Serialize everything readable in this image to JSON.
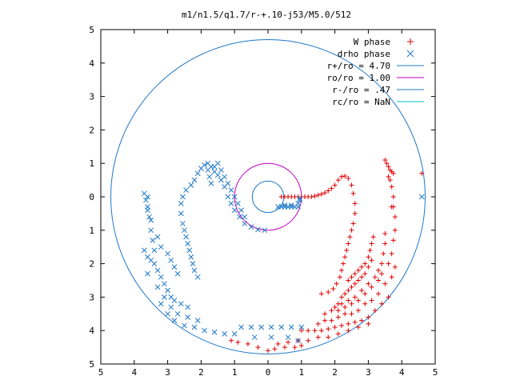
{
  "chart_data": {
    "type": "scatter",
    "title": "m1/n1.5/q1.7/r-+.10-j53/M5.0/512",
    "xlabel": "",
    "ylabel": "",
    "xlim": [
      -5,
      5
    ],
    "ylim": [
      -5,
      5
    ],
    "x_ticks": [
      -5,
      -4,
      -3,
      -2,
      -1,
      0,
      1,
      2,
      3,
      4,
      5
    ],
    "y_ticks": [
      -5,
      -4,
      -3,
      -2,
      -1,
      0,
      1,
      2,
      3,
      4,
      5
    ],
    "x_tick_labels": [
      "5",
      "4",
      "3",
      "2",
      "1",
      "0",
      "1",
      "2",
      "3",
      "4",
      "5"
    ],
    "y_tick_labels": [
      "5",
      "4",
      "3",
      "2",
      "1",
      "0",
      "1",
      "2",
      "3",
      "4",
      "5"
    ],
    "grid": false,
    "legend_position": "top-right",
    "series": [
      {
        "name": "W phase",
        "marker": "plus",
        "color": "#e00000",
        "points": [
          [
            0.4,
            0.0
          ],
          [
            0.5,
            0.0
          ],
          [
            0.6,
            0.0
          ],
          [
            0.7,
            0.0
          ],
          [
            0.8,
            0.0
          ],
          [
            0.9,
            0.0
          ],
          [
            1.0,
            0.0
          ],
          [
            1.1,
            0.0
          ],
          [
            1.2,
            0.0
          ],
          [
            1.3,
            0.0
          ],
          [
            1.4,
            0.02
          ],
          [
            1.5,
            0.05
          ],
          [
            1.6,
            0.08
          ],
          [
            1.7,
            0.12
          ],
          [
            1.8,
            0.18
          ],
          [
            1.9,
            0.25
          ],
          [
            2.0,
            0.35
          ],
          [
            2.1,
            0.5
          ],
          [
            2.2,
            0.6
          ],
          [
            2.3,
            0.62
          ],
          [
            2.4,
            0.55
          ],
          [
            2.5,
            0.35
          ],
          [
            2.55,
            0.1
          ],
          [
            2.6,
            -0.2
          ],
          [
            2.6,
            -0.5
          ],
          [
            2.55,
            -0.8
          ],
          [
            2.5,
            -1.0
          ],
          [
            2.45,
            -1.2
          ],
          [
            2.4,
            -1.4
          ],
          [
            2.35,
            -1.6
          ],
          [
            2.3,
            -1.8
          ],
          [
            2.25,
            -2.0
          ],
          [
            2.2,
            -2.2
          ],
          [
            2.15,
            -2.4
          ],
          [
            2.05,
            -2.6
          ],
          [
            1.95,
            -2.75
          ],
          [
            1.8,
            -2.85
          ],
          [
            1.6,
            -2.9
          ],
          [
            2.4,
            -2.5
          ],
          [
            2.5,
            -2.4
          ],
          [
            2.6,
            -2.3
          ],
          [
            2.7,
            -2.2
          ],
          [
            2.8,
            -2.1
          ],
          [
            2.9,
            -2.0
          ],
          [
            3.0,
            -1.8
          ],
          [
            3.05,
            -1.6
          ],
          [
            3.1,
            -1.4
          ],
          [
            3.15,
            -1.2
          ],
          [
            2.2,
            -3.0
          ],
          [
            2.3,
            -2.9
          ],
          [
            2.4,
            -2.8
          ],
          [
            2.5,
            -2.7
          ],
          [
            2.6,
            -2.6
          ],
          [
            2.7,
            -2.5
          ],
          [
            2.8,
            -2.4
          ],
          [
            2.9,
            -2.3
          ],
          [
            3.0,
            -2.1
          ],
          [
            3.1,
            -1.9
          ],
          [
            2.0,
            -3.3
          ],
          [
            2.1,
            -3.2
          ],
          [
            2.2,
            -3.2
          ],
          [
            2.4,
            -3.1
          ],
          [
            2.6,
            -3.0
          ],
          [
            2.8,
            -2.8
          ],
          [
            3.0,
            -2.6
          ],
          [
            3.2,
            -2.4
          ],
          [
            3.3,
            -2.2
          ],
          [
            3.4,
            -2.0
          ],
          [
            3.45,
            -1.7
          ],
          [
            3.5,
            -1.4
          ],
          [
            3.5,
            -1.1
          ],
          [
            1.7,
            -3.5
          ],
          [
            1.9,
            -3.4
          ],
          [
            2.1,
            -3.4
          ],
          [
            2.3,
            -3.3
          ],
          [
            2.5,
            -3.2
          ],
          [
            2.7,
            -3.1
          ],
          [
            2.9,
            -2.9
          ],
          [
            3.1,
            -2.7
          ],
          [
            3.3,
            -2.5
          ],
          [
            3.4,
            -2.3
          ],
          [
            3.6,
            -2.0
          ],
          [
            3.7,
            -1.7
          ],
          [
            3.75,
            -1.3
          ],
          [
            3.8,
            -1.0
          ],
          [
            3.8,
            -0.6
          ],
          [
            3.75,
            -0.3
          ],
          [
            1.5,
            -3.8
          ],
          [
            1.7,
            -3.7
          ],
          [
            1.9,
            -3.7
          ],
          [
            2.1,
            -3.6
          ],
          [
            2.3,
            -3.5
          ],
          [
            2.5,
            -3.5
          ],
          [
            2.7,
            -3.4
          ],
          [
            2.9,
            -3.2
          ],
          [
            3.1,
            -3.1
          ],
          [
            3.3,
            -2.9
          ],
          [
            3.5,
            -2.6
          ],
          [
            3.7,
            -2.4
          ],
          [
            3.8,
            -2.1
          ],
          [
            1.0,
            -4.0
          ],
          [
            1.2,
            -4.0
          ],
          [
            1.4,
            -4.0
          ],
          [
            1.6,
            -4.0
          ],
          [
            1.8,
            -3.95
          ],
          [
            2.0,
            -3.9
          ],
          [
            2.2,
            -3.85
          ],
          [
            2.4,
            -3.8
          ],
          [
            2.6,
            -3.75
          ],
          [
            2.8,
            -3.7
          ],
          [
            3.0,
            -3.6
          ],
          [
            3.2,
            -3.4
          ],
          [
            3.4,
            -3.2
          ],
          [
            3.6,
            -3.0
          ],
          [
            0.3,
            -4.4
          ],
          [
            0.6,
            -4.35
          ],
          [
            0.9,
            -4.3
          ],
          [
            1.2,
            -4.3
          ],
          [
            1.5,
            -4.2
          ],
          [
            1.8,
            -4.2
          ],
          [
            2.1,
            -4.1
          ],
          [
            2.4,
            -4.0
          ],
          [
            2.7,
            -3.9
          ],
          [
            3.0,
            -3.8
          ],
          [
            -1.1,
            -4.3
          ],
          [
            -0.9,
            -4.35
          ],
          [
            -0.6,
            -4.4
          ],
          [
            -0.3,
            -4.5
          ],
          [
            0.0,
            -4.6
          ],
          [
            0.2,
            -4.55
          ],
          [
            0.5,
            -4.5
          ],
          [
            0.8,
            -4.5
          ],
          [
            1.0,
            -4.45
          ],
          [
            3.5,
            1.1
          ],
          [
            3.55,
            1.0
          ],
          [
            3.6,
            0.9
          ],
          [
            3.65,
            0.8
          ],
          [
            3.7,
            0.75
          ],
          [
            3.75,
            0.7
          ],
          [
            3.6,
            0.6
          ],
          [
            3.65,
            0.5
          ],
          [
            3.7,
            0.3
          ],
          [
            3.75,
            0.0
          ],
          [
            3.7,
            -0.3
          ],
          [
            4.6,
            0.7
          ]
        ]
      },
      {
        "name": "drho phase",
        "marker": "cross",
        "color": "#1e78c8",
        "points": [
          [
            0.3,
            -0.3
          ],
          [
            0.4,
            -0.3
          ],
          [
            0.5,
            -0.3
          ],
          [
            0.6,
            -0.3
          ],
          [
            0.7,
            -0.3
          ],
          [
            0.8,
            -0.3
          ],
          [
            0.9,
            -0.3
          ],
          [
            0.5,
            -0.25
          ],
          [
            0.7,
            -0.25
          ],
          [
            0.9,
            -0.2
          ],
          [
            0.95,
            -0.1
          ],
          [
            0.95,
            -0.05
          ],
          [
            -0.1,
            -1.0
          ],
          [
            -0.3,
            -0.98
          ],
          [
            -0.5,
            -0.9
          ],
          [
            -0.7,
            -0.8
          ],
          [
            -0.85,
            -0.6
          ],
          [
            -1.0,
            -0.4
          ],
          [
            -1.1,
            -0.2
          ],
          [
            -1.2,
            0.0
          ],
          [
            -1.3,
            0.3
          ],
          [
            -1.4,
            0.5
          ],
          [
            -1.5,
            0.65
          ],
          [
            -1.6,
            0.75
          ],
          [
            -1.7,
            0.9
          ],
          [
            -1.8,
            1.0
          ],
          [
            -1.9,
            0.95
          ],
          [
            -2.0,
            0.85
          ],
          [
            -2.1,
            0.7
          ],
          [
            -2.2,
            0.5
          ],
          [
            -2.3,
            0.35
          ],
          [
            -2.45,
            0.2
          ],
          [
            -2.55,
            0.0
          ],
          [
            -2.6,
            -0.2
          ],
          [
            -2.6,
            -0.5
          ],
          [
            -2.55,
            -0.8
          ],
          [
            -2.5,
            -1.0
          ],
          [
            -2.45,
            -1.2
          ],
          [
            -2.4,
            -1.4
          ],
          [
            -2.35,
            -1.6
          ],
          [
            -2.3,
            -1.8
          ],
          [
            -2.25,
            -2.0
          ],
          [
            -2.2,
            -2.2
          ],
          [
            -2.1,
            -2.4
          ],
          [
            -3.6,
            -1.8
          ],
          [
            -3.5,
            -1.9
          ],
          [
            -3.4,
            -2.0
          ],
          [
            -3.3,
            -2.2
          ],
          [
            -3.2,
            -2.4
          ],
          [
            -3.1,
            -2.6
          ],
          [
            -3.0,
            -2.8
          ],
          [
            -2.9,
            -3.0
          ],
          [
            -2.8,
            -3.1
          ],
          [
            -2.6,
            -3.2
          ],
          [
            -2.4,
            -3.3
          ],
          [
            -3.7,
            -1.6
          ],
          [
            -3.6,
            -2.3
          ],
          [
            -3.3,
            -2.7
          ],
          [
            -3.1,
            -3.0
          ],
          [
            -2.9,
            -3.3
          ],
          [
            -2.7,
            -3.5
          ],
          [
            -2.4,
            -3.6
          ],
          [
            -2.1,
            -3.7
          ],
          [
            -3.2,
            -3.2
          ],
          [
            -3.0,
            -3.5
          ],
          [
            -2.8,
            -3.7
          ],
          [
            -2.5,
            -3.85
          ],
          [
            -2.2,
            -3.9
          ],
          [
            -1.9,
            -4.0
          ],
          [
            -1.6,
            -4.05
          ],
          [
            -1.3,
            -4.1
          ],
          [
            -1.0,
            -4.1
          ],
          [
            -0.8,
            -3.9
          ],
          [
            -0.5,
            -3.9
          ],
          [
            -0.2,
            -3.9
          ],
          [
            0.1,
            -3.9
          ],
          [
            0.4,
            -3.9
          ],
          [
            0.7,
            -3.9
          ],
          [
            1.0,
            -3.9
          ],
          [
            -0.4,
            -4.2
          ],
          [
            0.1,
            -4.2
          ],
          [
            0.6,
            -4.2
          ],
          [
            0.9,
            -4.3
          ],
          [
            -3.6,
            0.0
          ],
          [
            -3.6,
            -0.3
          ],
          [
            -3.55,
            -0.6
          ],
          [
            -3.5,
            -1.0
          ],
          [
            -3.45,
            -1.3
          ],
          [
            -3.4,
            -1.6
          ],
          [
            -3.3,
            -1.2
          ],
          [
            -3.2,
            -1.5
          ],
          [
            -3.0,
            -1.7
          ],
          [
            -2.9,
            -1.9
          ],
          [
            -2.8,
            -2.1
          ],
          [
            -2.7,
            -2.3
          ],
          [
            -3.7,
            0.1
          ],
          [
            -3.65,
            -0.1
          ],
          [
            -3.6,
            -0.4
          ],
          [
            -3.5,
            -0.7
          ],
          [
            -1.8,
            0.8
          ],
          [
            -1.75,
            0.6
          ],
          [
            -1.7,
            0.4
          ],
          [
            -1.6,
            0.9
          ],
          [
            -1.5,
            1.0
          ],
          [
            -1.4,
            0.8
          ],
          [
            -1.3,
            0.6
          ],
          [
            -1.2,
            0.4
          ],
          [
            -1.1,
            0.2
          ],
          [
            -1.0,
            0.0
          ],
          [
            -0.9,
            -0.2
          ],
          [
            -0.8,
            -0.4
          ],
          [
            -0.7,
            -0.6
          ],
          [
            4.6,
            0.0
          ]
        ]
      }
    ],
    "circles": [
      {
        "name": "r+/ro = 4.70",
        "radius": 4.7,
        "color": "#1e78c8"
      },
      {
        "name": "ro/ro = 1.00",
        "radius": 1.0,
        "color": "#c000c0"
      },
      {
        "name": "r-/ro = .47",
        "radius": 0.47,
        "color": "#1e78c8"
      },
      {
        "name": "rc/ro = NaN",
        "radius": null,
        "color": "#00c0c0"
      }
    ],
    "legend": [
      {
        "label": "W phase",
        "marker": "plus",
        "color": "#e00000"
      },
      {
        "label": "drho phase",
        "marker": "cross",
        "color": "#1e78c8"
      },
      {
        "label": "r+/ro = 4.70",
        "marker": "line",
        "color": "#1e78c8"
      },
      {
        "label": "ro/ro = 1.00",
        "marker": "line",
        "color": "#c000c0"
      },
      {
        "label": "r-/ro = .47",
        "marker": "line",
        "color": "#1e78c8"
      },
      {
        "label": "rc/ro = NaN",
        "marker": "line",
        "color": "#00c0c0"
      }
    ]
  }
}
